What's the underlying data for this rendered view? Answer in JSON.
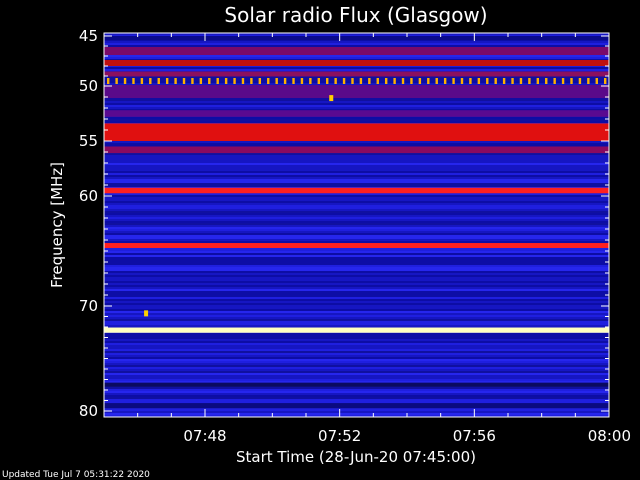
{
  "chart_data": {
    "type": "heatmap",
    "title": "Solar radio Flux (Glasgow)",
    "xlabel": "Start Time (28-Jun-20 07:45:00)",
    "ylabel": "Frequency [MHz]",
    "x_start_minutes": 0,
    "xlim_minutes": [
      0,
      15
    ],
    "ylim": [
      45,
      80
    ],
    "x_ticks": [
      {
        "minute": 3,
        "label": "07:48"
      },
      {
        "minute": 7,
        "label": "07:52"
      },
      {
        "minute": 11,
        "label": "07:56"
      },
      {
        "minute": 15,
        "label": "08:00"
      }
    ],
    "y_ticks": [
      {
        "freq": 45,
        "label": "45"
      },
      {
        "freq": 50,
        "label": "50"
      },
      {
        "freq": 55,
        "label": "55"
      },
      {
        "freq": 60,
        "label": "60"
      },
      {
        "freq": 70,
        "label": "70"
      },
      {
        "freq": 80,
        "label": "80"
      }
    ],
    "bands": [
      {
        "freq": 45.2,
        "width": 0.4,
        "color": "#0a0a8a"
      },
      {
        "freq": 46.5,
        "width": 0.8,
        "color": "#7a0a6a"
      },
      {
        "freq": 47.7,
        "width": 0.6,
        "color": "#c01010"
      },
      {
        "freq": 48.8,
        "width": 0.5,
        "color": "#8a1060"
      },
      {
        "freq": 50.5,
        "width": 1.2,
        "color": "#5a0a8a"
      },
      {
        "freq": 52.5,
        "width": 0.6,
        "color": "#5a0a90"
      },
      {
        "freq": 54.2,
        "width": 1.6,
        "color": "#e01010"
      },
      {
        "freq": 55.8,
        "width": 0.6,
        "color": "#8a0a60"
      },
      {
        "freq": 59.5,
        "width": 0.5,
        "color": "#ff2020"
      },
      {
        "freq": 64.5,
        "width": 0.45,
        "color": "#ff2020"
      },
      {
        "freq": 72.3,
        "width": 0.5,
        "color": "#ffffc0"
      },
      {
        "freq": 77.5,
        "width": 0.4,
        "color": "#0a0a60"
      },
      {
        "freq": 79.5,
        "width": 0.5,
        "color": "#0a0a80"
      }
    ],
    "spots": [
      {
        "minute": 6.75,
        "freq": 51.1,
        "color": "#ffd000"
      },
      {
        "minute": 1.25,
        "freq": 70.7,
        "color": "#ffd000"
      }
    ],
    "dotted_band": {
      "freq": 49.5,
      "color": "#ffb000",
      "count": 60
    },
    "colors": {
      "background": "#000000",
      "plot_base": "#1a1ad0",
      "axis": "#ffffff"
    }
  },
  "footer": {
    "updated": "Updated Tue Jul  7 05:31:22 2020"
  }
}
